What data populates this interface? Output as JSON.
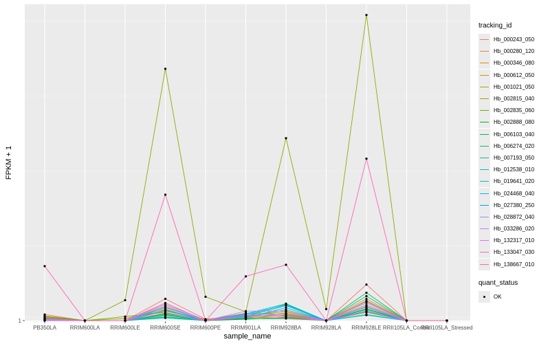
{
  "chart_data": {
    "type": "line",
    "title": "",
    "xlabel": "sample_name",
    "ylabel": "FPKM + 1",
    "ylim": [
      0.9,
      47.5
    ],
    "yticks": [
      {
        "value": 1,
        "label": "1"
      }
    ],
    "categories": [
      "PB350LA",
      "RRIM600LA",
      "RRIM600LE",
      "RRIM600SE",
      "RRIM600PE",
      "RRIM901LA",
      "RRIM928BA",
      "RRIM928LA",
      "RRIM928LE",
      "RRII105LA_Control",
      "RRII105LA_Stressed"
    ],
    "series": [
      {
        "name": "Hb_000243_050",
        "color": "#F8766D",
        "values": [
          1.9,
          1.0,
          1.0,
          4.2,
          1.2,
          1.8,
          1.6,
          1.0,
          6.3,
          1.0,
          1.0
        ]
      },
      {
        "name": "Hb_000280_120",
        "color": "#EC8239",
        "values": [
          1.5,
          1.0,
          1.0,
          3.4,
          1.1,
          2.1,
          1.9,
          1.0,
          4.2,
          1.0,
          1.0
        ]
      },
      {
        "name": "Hb_000346_080",
        "color": "#DB8E00",
        "values": [
          1.3,
          1.0,
          1.0,
          2.9,
          1.1,
          1.7,
          2.3,
          1.0,
          3.3,
          1.0,
          1.0
        ]
      },
      {
        "name": "Hb_000612_050",
        "color": "#C79800",
        "values": [
          1.7,
          1.0,
          1.0,
          2.4,
          1.2,
          1.5,
          2.1,
          1.0,
          2.8,
          1.0,
          1.0
        ]
      },
      {
        "name": "Hb_001021_050",
        "color": "#AEA200",
        "values": [
          1.2,
          1.0,
          1.3,
          2.6,
          1.1,
          1.3,
          1.4,
          1.0,
          2.2,
          1.0,
          1.0
        ]
      },
      {
        "name": "Hb_002815_040",
        "color": "#8FAA00",
        "values": [
          1.0,
          1.0,
          4.0,
          38.0,
          4.5,
          2.3,
          27.8,
          2.7,
          45.9,
          1.0,
          1.0
        ]
      },
      {
        "name": "Hb_002835_060",
        "color": "#64B200",
        "values": [
          1.6,
          1.0,
          1.6,
          2.2,
          1.0,
          1.4,
          1.8,
          1.0,
          3.9,
          1.0,
          1.0
        ]
      },
      {
        "name": "Hb_002888_080",
        "color": "#00B712",
        "values": [
          1.1,
          1.0,
          1.0,
          1.8,
          1.0,
          1.2,
          1.5,
          1.0,
          2.4,
          1.0,
          1.0
        ]
      },
      {
        "name": "Hb_006103_040",
        "color": "#00BC56",
        "values": [
          1.4,
          1.0,
          1.0,
          2.0,
          1.1,
          1.3,
          1.3,
          1.0,
          5.1,
          1.0,
          1.0
        ]
      },
      {
        "name": "Hb_006274_020",
        "color": "#00BF7D",
        "values": [
          1.2,
          1.0,
          1.0,
          1.6,
          1.0,
          1.5,
          2.6,
          1.0,
          4.6,
          1.0,
          1.0
        ]
      },
      {
        "name": "Hb_007193_050",
        "color": "#00C19F",
        "values": [
          1.3,
          1.0,
          1.0,
          1.5,
          1.0,
          1.6,
          3.2,
          1.0,
          2.6,
          1.0,
          1.0
        ]
      },
      {
        "name": "Hb_012538_010",
        "color": "#00C0BB",
        "values": [
          1.1,
          1.0,
          1.0,
          1.4,
          1.0,
          1.7,
          3.4,
          1.0,
          1.9,
          1.0,
          1.0
        ]
      },
      {
        "name": "Hb_019641_020",
        "color": "#00BCD6",
        "values": [
          1.0,
          1.0,
          1.0,
          1.9,
          1.0,
          2.0,
          3.5,
          1.0,
          1.8,
          1.0,
          1.0
        ]
      },
      {
        "name": "Hb_024468_040",
        "color": "#00B5EE",
        "values": [
          1.2,
          1.0,
          1.0,
          3.0,
          1.0,
          1.9,
          3.3,
          1.0,
          3.0,
          1.0,
          1.0
        ]
      },
      {
        "name": "Hb_027380_250",
        "color": "#00A7FF",
        "values": [
          1.0,
          1.0,
          1.0,
          2.5,
          1.0,
          1.4,
          2.9,
          1.0,
          2.7,
          1.0,
          1.0
        ]
      },
      {
        "name": "Hb_028872_040",
        "color": "#7F96FF",
        "values": [
          1.1,
          1.0,
          1.0,
          2.7,
          1.0,
          1.6,
          2.0,
          1.0,
          3.6,
          1.0,
          1.0
        ]
      },
      {
        "name": "Hb_033286_020",
        "color": "#BB83FF",
        "values": [
          1.3,
          1.0,
          1.0,
          3.2,
          1.0,
          2.4,
          2.4,
          1.0,
          3.1,
          1.0,
          1.0
        ]
      },
      {
        "name": "Hb_132317_010",
        "color": "#E26EF7",
        "values": [
          1.0,
          1.0,
          1.0,
          3.6,
          1.0,
          1.8,
          1.7,
          1.0,
          2.3,
          1.0,
          1.0
        ]
      },
      {
        "name": "Hb_133047_030",
        "color": "#FF63B6",
        "values": [
          9.0,
          1.0,
          1.0,
          19.5,
          1.0,
          7.5,
          9.2,
          1.0,
          24.8,
          1.0,
          1.0
        ]
      },
      {
        "name": "Hb_138667_010",
        "color": "#FF6A98",
        "values": [
          1.2,
          1.0,
          1.0,
          2.1,
          1.0,
          1.5,
          1.4,
          1.0,
          3.8,
          1.0,
          1.0
        ]
      }
    ],
    "legend": {
      "title": "tracking_id",
      "placement": "right"
    },
    "legend2": {
      "title": "quant_status",
      "items": [
        "OK"
      ]
    },
    "grid": true
  }
}
